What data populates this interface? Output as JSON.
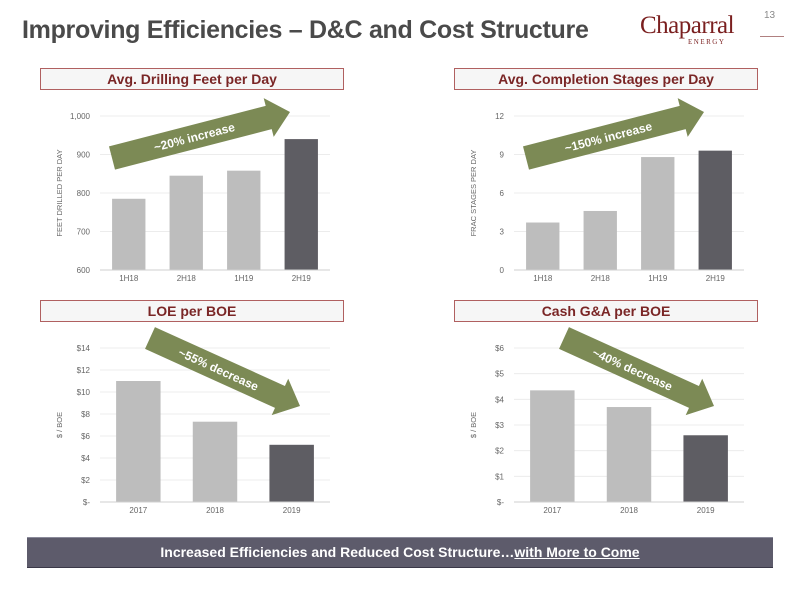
{
  "header": {
    "title": "Improving Efficiencies – D&C and Cost Structure",
    "page_number": "13",
    "logo_text": "Chaparral",
    "logo_subtext": "ENERGY"
  },
  "footer": {
    "text_main": "Increased Efficiencies and Reduced Cost Structure…",
    "text_emphasis": "with More to Come"
  },
  "colors": {
    "bar_light": "#bdbdbd",
    "bar_dark": "#5e5d63",
    "arrow": "#7c8a55",
    "title_text": "#7a2626",
    "footer_bg": "#5d5b6b"
  },
  "chart_data": [
    {
      "type": "bar",
      "title": "Avg. Drilling Feet per Day",
      "ylabel": "FEET DRILLED PER DAY",
      "categories": [
        "1H18",
        "2H18",
        "1H19",
        "2H19"
      ],
      "values": [
        785,
        845,
        858,
        940
      ],
      "ylim": [
        600,
        1000
      ],
      "yticks": [
        "600",
        "700",
        "800",
        "900",
        "1,000"
      ],
      "highlight_last": true,
      "annotation": "~20% increase",
      "trend": "up"
    },
    {
      "type": "bar",
      "title": "Avg. Completion Stages per Day",
      "ylabel": "FRAC STAGES PER DAY",
      "categories": [
        "1H18",
        "2H18",
        "1H19",
        "2H19"
      ],
      "values": [
        3.7,
        4.6,
        8.8,
        9.3
      ],
      "ylim": [
        0,
        12
      ],
      "yticks": [
        "0",
        "3",
        "6",
        "9",
        "12"
      ],
      "highlight_last": true,
      "annotation": "~150% increase",
      "trend": "up"
    },
    {
      "type": "bar",
      "title": "LOE per BOE",
      "ylabel": "$ / BOE",
      "categories": [
        "2017",
        "2018",
        "2019"
      ],
      "values": [
        11.0,
        7.3,
        5.2
      ],
      "ylim": [
        0,
        14
      ],
      "yticks": [
        "$-",
        "$2",
        "$4",
        "$6",
        "$8",
        "$10",
        "$12",
        "$14"
      ],
      "highlight_last": true,
      "annotation": "~55% decrease",
      "trend": "down"
    },
    {
      "type": "bar",
      "title": "Cash G&A per BOE",
      "ylabel": "$ / BOE",
      "categories": [
        "2017",
        "2018",
        "2019"
      ],
      "values": [
        4.35,
        3.7,
        2.6
      ],
      "ylim": [
        0,
        6
      ],
      "yticks": [
        "$-",
        "$1",
        "$2",
        "$3",
        "$4",
        "$5",
        "$6"
      ],
      "highlight_last": true,
      "annotation": "~40% decrease",
      "trend": "down"
    }
  ]
}
